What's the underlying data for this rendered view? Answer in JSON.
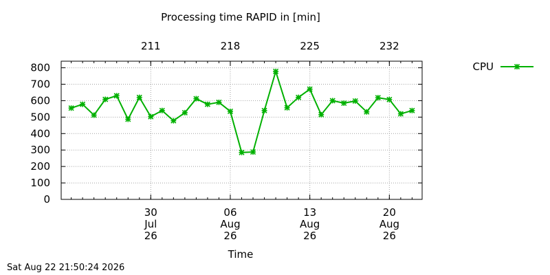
{
  "chart_data": {
    "type": "line",
    "title": "Processing time RAPID in [min]",
    "xlabel": "Time",
    "ylabel": "",
    "ylim": [
      0,
      840
    ],
    "yticks": [
      0,
      100,
      200,
      300,
      400,
      500,
      600,
      700,
      800
    ],
    "grid": true,
    "legend_position": "right",
    "x_type": "date",
    "xlim": [
      "2026-07-23",
      "2026-08-22"
    ],
    "x_ticks": [
      {
        "date": "2026-07-30",
        "lines": [
          "30",
          "Jul",
          "26"
        ]
      },
      {
        "date": "2026-08-06",
        "lines": [
          "06",
          "Aug",
          "26"
        ]
      },
      {
        "date": "2026-08-13",
        "lines": [
          "13",
          "Aug",
          "26"
        ]
      },
      {
        "date": "2026-08-20",
        "lines": [
          "20",
          "Aug",
          "26"
        ]
      }
    ],
    "top_ticks": [
      {
        "date": "2026-07-30",
        "label": "211"
      },
      {
        "date": "2026-08-06",
        "label": "218"
      },
      {
        "date": "2026-08-13",
        "label": "225"
      },
      {
        "date": "2026-08-20",
        "label": "232"
      }
    ],
    "series": [
      {
        "name": "CPU",
        "color": "#00b000",
        "marker": "cross",
        "x": [
          "2026-07-23",
          "2026-07-24",
          "2026-07-25",
          "2026-07-26",
          "2026-07-27",
          "2026-07-28",
          "2026-07-29",
          "2026-07-30",
          "2026-07-31",
          "2026-08-01",
          "2026-08-02",
          "2026-08-03",
          "2026-08-04",
          "2026-08-05",
          "2026-08-06",
          "2026-08-07",
          "2026-08-08",
          "2026-08-09",
          "2026-08-10",
          "2026-08-11",
          "2026-08-12",
          "2026-08-13",
          "2026-08-14",
          "2026-08-15",
          "2026-08-16",
          "2026-08-17",
          "2026-08-18",
          "2026-08-19",
          "2026-08-20",
          "2026-08-21",
          "2026-08-22"
        ],
        "values": [
          555,
          578,
          512,
          608,
          630,
          487,
          620,
          503,
          540,
          478,
          527,
          612,
          578,
          590,
          535,
          285,
          288,
          540,
          778,
          557,
          620,
          670,
          515,
          600,
          585,
          598,
          532,
          618,
          607,
          520,
          540
        ]
      }
    ]
  },
  "timestamp": "Sat Aug 22 21:50:24 2026"
}
